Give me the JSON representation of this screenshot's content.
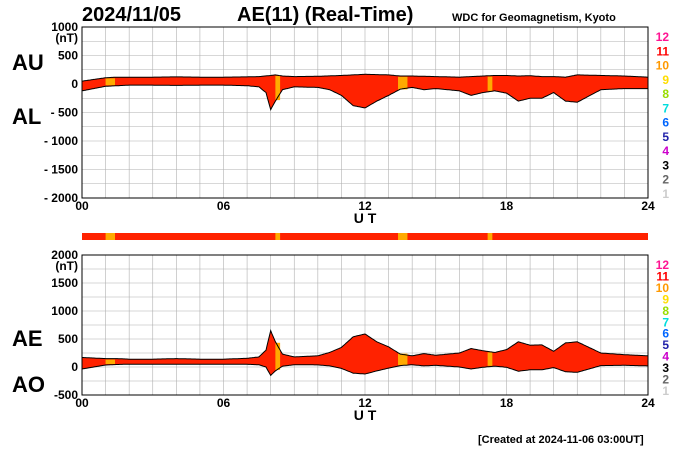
{
  "header": {
    "date": "2024/11/05",
    "title": "AE(11) (Real-Time)",
    "credit": "WDC for Geomagnetism, Kyoto",
    "created": "[Created at 2024-11-06 03:00UT]"
  },
  "labels": {
    "au": "AU",
    "al": "AL",
    "ae": "AE",
    "ao": "AO"
  },
  "colors": {
    "fill": "#ff2200",
    "line": "#000000",
    "gap": "#ffaa00",
    "grid": "#b0b0b0"
  },
  "station_legend": [
    {
      "label": "12",
      "color": "#ff1493"
    },
    {
      "label": "11",
      "color": "#ff0000"
    },
    {
      "label": "10",
      "color": "#ff9900"
    },
    {
      "label": "9",
      "color": "#ffdd00"
    },
    {
      "label": "8",
      "color": "#99dd00"
    },
    {
      "label": "7",
      "color": "#00dddd"
    },
    {
      "label": "6",
      "color": "#0066ff"
    },
    {
      "label": "5",
      "color": "#2222aa"
    },
    {
      "label": "4",
      "color": "#cc00cc"
    },
    {
      "label": "3",
      "color": "#000000"
    },
    {
      "label": "2",
      "color": "#666666"
    },
    {
      "label": "1",
      "color": "#cccccc"
    }
  ],
  "chart_data": [
    {
      "type": "area",
      "panel": "AU/AL",
      "xlabel": "U T",
      "ylabel_unit": "(nT)",
      "xlim": [
        0,
        24
      ],
      "ylim": [
        -2000,
        1000
      ],
      "xticks": [
        "00",
        "06",
        "12",
        "18",
        "24"
      ],
      "yticks": [
        "1000",
        "500",
        "0",
        "- 500",
        "- 1000",
        "- 1500",
        "- 2000"
      ],
      "grid": true,
      "station_gaps": [
        [
          1.0,
          1.4
        ],
        [
          8.2,
          8.4
        ],
        [
          13.4,
          13.8
        ],
        [
          17.2,
          17.4
        ]
      ],
      "series": [
        {
          "name": "AU",
          "x": [
            0,
            0.5,
            1,
            1.5,
            2,
            3,
            4,
            5,
            6,
            7,
            7.5,
            8,
            8.2,
            8.5,
            9,
            10,
            11,
            11.5,
            12,
            12.5,
            13,
            13.5,
            14,
            15,
            16,
            16.5,
            17,
            17.5,
            18,
            18.5,
            19,
            19.5,
            20,
            20.5,
            21,
            22,
            23,
            24
          ],
          "values": [
            50,
            80,
            110,
            120,
            120,
            120,
            125,
            120,
            120,
            125,
            130,
            150,
            160,
            140,
            130,
            135,
            150,
            160,
            170,
            165,
            160,
            140,
            140,
            130,
            120,
            130,
            140,
            150,
            150,
            140,
            145,
            130,
            130,
            120,
            160,
            150,
            140,
            120
          ]
        },
        {
          "name": "AL",
          "x": [
            0,
            0.5,
            1,
            1.5,
            2,
            3,
            4,
            5,
            6,
            7,
            7.5,
            7.8,
            8,
            8.2,
            8.5,
            9,
            10,
            10.5,
            11,
            11.5,
            12,
            12.5,
            13,
            13.5,
            14,
            14.5,
            15,
            16,
            16.5,
            17,
            17.5,
            18,
            18.5,
            19,
            19.5,
            20,
            20.5,
            21,
            22,
            23,
            24
          ],
          "values": [
            -120,
            -80,
            -40,
            -30,
            -20,
            -20,
            -25,
            -20,
            -20,
            -30,
            -50,
            -150,
            -450,
            -300,
            -100,
            -50,
            -60,
            -100,
            -200,
            -380,
            -420,
            -300,
            -200,
            -90,
            -60,
            -100,
            -80,
            -120,
            -200,
            -150,
            -120,
            -160,
            -300,
            -250,
            -250,
            -150,
            -300,
            -320,
            -100,
            -80,
            -80
          ]
        }
      ]
    },
    {
      "type": "area",
      "panel": "AE/AO",
      "xlabel": "U T",
      "ylabel_unit": "(nT)",
      "xlim": [
        0,
        24
      ],
      "ylim": [
        -500,
        2000
      ],
      "xticks": [
        "00",
        "06",
        "12",
        "18",
        "24"
      ],
      "yticks": [
        "2000",
        "1500",
        "1000",
        "500",
        "0",
        "-500"
      ],
      "grid": true,
      "station_gaps": [
        [
          1.0,
          1.4
        ],
        [
          8.2,
          8.4
        ],
        [
          13.4,
          13.8
        ],
        [
          17.2,
          17.4
        ]
      ],
      "series": [
        {
          "name": "AE",
          "x": [
            0,
            0.5,
            1,
            1.5,
            2,
            3,
            4,
            5,
            6,
            7,
            7.5,
            7.8,
            8,
            8.2,
            8.5,
            9,
            10,
            10.5,
            11,
            11.5,
            12,
            12.5,
            13,
            13.5,
            14,
            14.5,
            15,
            16,
            16.5,
            17,
            17.5,
            18,
            18.5,
            19,
            19.5,
            20,
            20.5,
            21,
            22,
            23,
            24
          ],
          "values": [
            170,
            160,
            150,
            150,
            140,
            140,
            150,
            140,
            140,
            155,
            180,
            300,
            650,
            450,
            230,
            180,
            200,
            260,
            350,
            540,
            590,
            450,
            360,
            230,
            200,
            240,
            210,
            250,
            330,
            290,
            260,
            310,
            450,
            390,
            395,
            280,
            430,
            450,
            250,
            220,
            200
          ]
        },
        {
          "name": "AO",
          "x": [
            0,
            0.5,
            1,
            1.5,
            2,
            3,
            4,
            5,
            6,
            7,
            7.5,
            7.8,
            8,
            8.2,
            8.5,
            9,
            10,
            10.5,
            11,
            11.5,
            12,
            12.5,
            13,
            13.5,
            14,
            14.5,
            15,
            16,
            16.5,
            17,
            17.5,
            18,
            18.5,
            19,
            19.5,
            20,
            20.5,
            21,
            22,
            23,
            24
          ],
          "values": [
            -35,
            0,
            35,
            45,
            50,
            50,
            50,
            50,
            50,
            48,
            40,
            0,
            -150,
            -70,
            15,
            40,
            38,
            20,
            -25,
            -110,
            -125,
            -70,
            -20,
            25,
            40,
            20,
            30,
            0,
            -35,
            -5,
            15,
            -5,
            -75,
            -50,
            -50,
            -10,
            -85,
            -95,
            25,
            30,
            20
          ]
        }
      ]
    }
  ]
}
